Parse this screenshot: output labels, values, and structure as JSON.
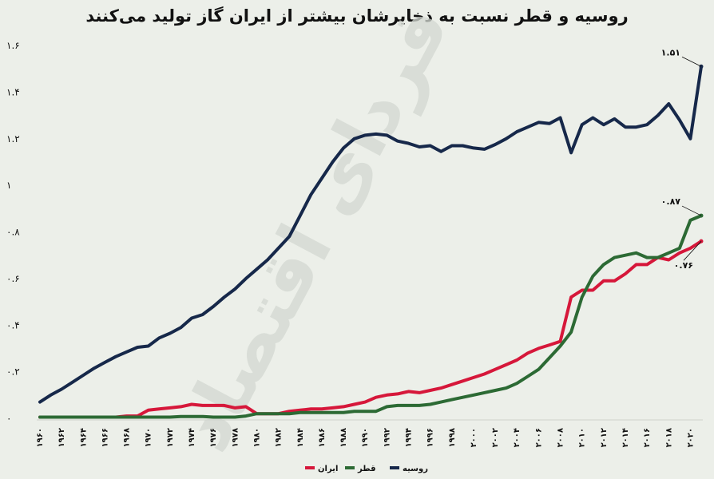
{
  "chart_data": {
    "type": "line",
    "title": "روسیه و قطر نسبت به ذخایرشان بیشتر از ایران گاز تولید می‌کنند",
    "xlabel": "",
    "ylabel": "",
    "x": [
      1960,
      1961,
      1962,
      1963,
      1964,
      1965,
      1966,
      1967,
      1968,
      1969,
      1970,
      1971,
      1972,
      1973,
      1974,
      1975,
      1976,
      1977,
      1978,
      1979,
      1980,
      1981,
      1982,
      1983,
      1984,
      1985,
      1986,
      1987,
      1988,
      1989,
      1990,
      1991,
      1992,
      1993,
      1994,
      1995,
      1996,
      1997,
      1998,
      1999,
      2000,
      2001,
      2002,
      2003,
      2004,
      2005,
      2006,
      2007,
      2008,
      2009,
      2010,
      2011,
      2012,
      2013,
      2014,
      2015,
      2016,
      2017,
      2018,
      2019,
      2020,
      2021
    ],
    "xticks": [
      "۱۹۶۰",
      "۱۹۶۲",
      "۱۹۶۴",
      "۱۹۶۶",
      "۱۹۶۸",
      "۱۹۷۰",
      "۱۹۷۲",
      "۱۹۷۴",
      "۱۹۷۶",
      "۱۹۷۸",
      "۱۹۸۰",
      "۱۹۸۲",
      "۱۹۸۴",
      "۱۹۸۶",
      "۱۹۸۸",
      "۱۹۹۰",
      "۱۹۹۲",
      "۱۹۹۴",
      "۱۹۹۶",
      "۱۹۹۸",
      "۲۰۰۰",
      "۲۰۰۲",
      "۲۰۰۴",
      "۲۰۰۶",
      "۲۰۰۸",
      "۲۰۱۰",
      "۲۰۱۲",
      "۲۰۱۴",
      "۲۰۱۶",
      "۲۰۱۸",
      "۲۰۲۰"
    ],
    "yticks": [
      "۰",
      "۰.۲",
      "۰.۴",
      "۰.۶",
      "۰.۸",
      "۱",
      "۱.۲",
      "۱.۴",
      "۱.۶"
    ],
    "ylim": [
      0,
      1.6
    ],
    "grid": false,
    "legend": "bottom-center",
    "series": [
      {
        "name": "روسیه",
        "color": "#16284a",
        "values": [
          0.07,
          0.1,
          0.125,
          0.155,
          0.185,
          0.215,
          0.24,
          0.265,
          0.285,
          0.305,
          0.31,
          0.345,
          0.365,
          0.39,
          0.43,
          0.445,
          0.48,
          0.52,
          0.555,
          0.6,
          0.64,
          0.68,
          0.73,
          0.78,
          0.87,
          0.96,
          1.03,
          1.1,
          1.16,
          1.2,
          1.215,
          1.22,
          1.215,
          1.19,
          1.18,
          1.165,
          1.17,
          1.145,
          1.17,
          1.17,
          1.16,
          1.155,
          1.175,
          1.2,
          1.23,
          1.25,
          1.27,
          1.265,
          1.29,
          1.14,
          1.26,
          1.29,
          1.26,
          1.285,
          1.25,
          1.25,
          1.26,
          1.3,
          1.35,
          1.28,
          1.2,
          1.51
        ]
      },
      {
        "name": "قطر",
        "color": "#2c6a34",
        "values": [
          0.005,
          0.005,
          0.005,
          0.005,
          0.005,
          0.005,
          0.005,
          0.005,
          0.005,
          0.005,
          0.005,
          0.005,
          0.005,
          0.008,
          0.008,
          0.008,
          0.005,
          0.005,
          0.005,
          0.01,
          0.02,
          0.02,
          0.02,
          0.02,
          0.025,
          0.025,
          0.025,
          0.025,
          0.025,
          0.03,
          0.03,
          0.03,
          0.05,
          0.055,
          0.055,
          0.055,
          0.06,
          0.07,
          0.08,
          0.09,
          0.1,
          0.11,
          0.12,
          0.13,
          0.15,
          0.18,
          0.21,
          0.26,
          0.31,
          0.37,
          0.52,
          0.61,
          0.66,
          0.69,
          0.7,
          0.71,
          0.69,
          0.69,
          0.71,
          0.73,
          0.85,
          0.87
        ]
      },
      {
        "name": "ایران",
        "color": "#d6173a",
        "values": [
          0.005,
          0.005,
          0.005,
          0.005,
          0.005,
          0.005,
          0.005,
          0.005,
          0.01,
          0.01,
          0.035,
          0.04,
          0.045,
          0.05,
          0.06,
          0.055,
          0.055,
          0.055,
          0.045,
          0.05,
          0.02,
          0.02,
          0.02,
          0.03,
          0.035,
          0.04,
          0.04,
          0.045,
          0.05,
          0.06,
          0.07,
          0.09,
          0.1,
          0.105,
          0.115,
          0.11,
          0.12,
          0.13,
          0.145,
          0.16,
          0.175,
          0.19,
          0.21,
          0.23,
          0.25,
          0.28,
          0.3,
          0.315,
          0.33,
          0.52,
          0.55,
          0.55,
          0.59,
          0.59,
          0.62,
          0.66,
          0.66,
          0.69,
          0.68,
          0.71,
          0.73,
          0.76
        ]
      }
    ],
    "annotations": [
      {
        "series": "روسیه",
        "text": "۱.۵۱"
      },
      {
        "series": "قطر",
        "text": "۰.۸۷"
      },
      {
        "series": "ایران",
        "text": "۰.۷۶"
      }
    ],
    "watermark": "فردای اقتصاد"
  }
}
